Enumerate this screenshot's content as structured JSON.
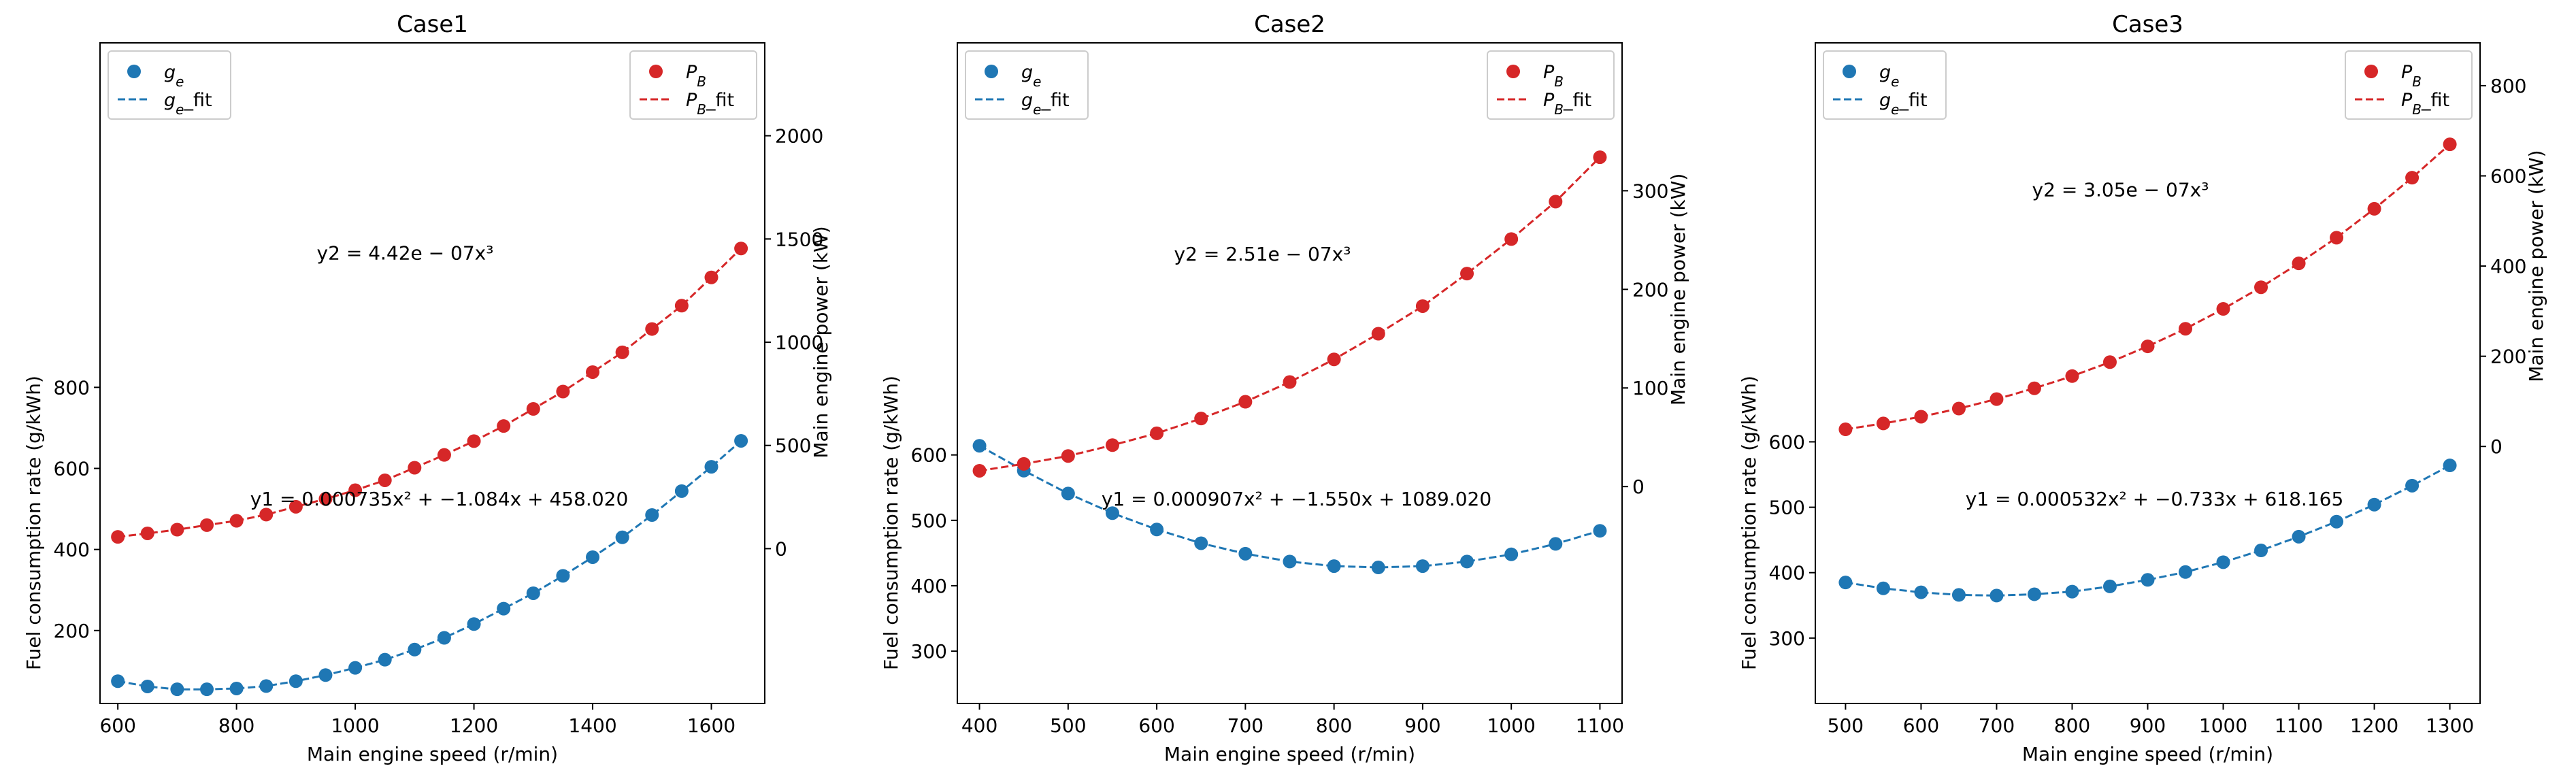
{
  "chart_data": [
    {
      "type": "scatter",
      "title": "Case1",
      "xlabel": "Main engine speed (r/min)",
      "ylabel_left": "Fuel consumption rate (g/kWh)",
      "ylabel_right": "Main engine power (kW)",
      "xlim": [
        570,
        1690
      ],
      "ylim_left": [
        20,
        1650
      ],
      "ylim_right": [
        -750,
        2450
      ],
      "xticks": [
        600,
        800,
        1000,
        1200,
        1400,
        1600
      ],
      "yticks_left": [
        200,
        400,
        600,
        800
      ],
      "yticks_right": [
        0,
        500,
        1000,
        1500,
        2000
      ],
      "x": [
        600,
        650,
        700,
        750,
        800,
        850,
        900,
        950,
        1000,
        1050,
        1100,
        1150,
        1200,
        1250,
        1300,
        1350,
        1400,
        1450,
        1500,
        1550,
        1600,
        1650
      ],
      "ge": [
        75,
        62,
        55,
        55,
        57,
        63,
        75,
        90,
        108,
        128,
        153,
        182,
        216,
        254,
        292,
        335,
        381,
        430,
        485,
        544,
        604,
        668
      ],
      "pb": [
        57,
        74,
        92,
        114,
        135,
        165,
        203,
        241,
        283,
        331,
        392,
        454,
        521,
        594,
        677,
        761,
        855,
        951,
        1064,
        1177,
        1314,
        1454
      ],
      "fit_ge": {
        "a": 0.000735,
        "b": -1.084,
        "c": 458.02
      },
      "fit_pb": {
        "k": 4.42e-07,
        "p": 3
      },
      "legend_left": [
        "g_e",
        "g_e_fit"
      ],
      "legend_right": [
        "P_B",
        "P_B_fit"
      ],
      "legend_left_loc": "upper left",
      "legend_right_loc": "upper right",
      "eq_ge": "y1 = 0.000735x² + −1.084x + 458.020",
      "eq_pb": "y2 = 4.42e − 07x³"
    },
    {
      "type": "scatter",
      "title": "Case2",
      "xlabel": "Main engine speed (r/min)",
      "ylabel_left": "Fuel consumption rate (g/kWh)",
      "ylabel_right": "Main engine power (kW)",
      "xlim": [
        375,
        1125
      ],
      "ylim_left": [
        220,
        1230
      ],
      "ylim_right": [
        -220,
        450
      ],
      "xticks": [
        400,
        500,
        600,
        700,
        800,
        900,
        1000,
        1100
      ],
      "yticks_left": [
        300,
        400,
        500,
        600
      ],
      "yticks_right": [
        0,
        100,
        200,
        300
      ],
      "x": [
        400,
        450,
        500,
        550,
        600,
        650,
        700,
        750,
        800,
        850,
        900,
        950,
        1000,
        1050,
        1100
      ],
      "ge": [
        614,
        576,
        541,
        511,
        486,
        465,
        449,
        437,
        430,
        428,
        430,
        437,
        448,
        464,
        484
      ],
      "pb": [
        16,
        23,
        31,
        42,
        54,
        69,
        86,
        106,
        129,
        155,
        183,
        216,
        251,
        289,
        334
      ],
      "fit_ge": {
        "a": 0.000907,
        "b": -1.55,
        "c": 1089.02
      },
      "fit_pb": {
        "k": 2.51e-07,
        "p": 3
      },
      "legend_left": [
        "g_e",
        "g_e_fit"
      ],
      "legend_right": [
        "P_B",
        "P_B_fit"
      ],
      "legend_left_loc": "upper left",
      "legend_right_loc": "upper right",
      "eq_ge": "y1 = 0.000907x² + −1.550x + 1089.020",
      "eq_pb": "y2 = 2.51e − 07x³"
    },
    {
      "type": "scatter",
      "title": "Case3",
      "xlabel": "Main engine speed (r/min)",
      "ylabel_left": "Fuel consumption rate (g/kWh)",
      "ylabel_right": "Main engine power (kW)",
      "xlim": [
        460,
        1340
      ],
      "ylim_left": [
        200,
        1210
      ],
      "ylim_right": [
        -570,
        895
      ],
      "xticks": [
        500,
        600,
        700,
        800,
        900,
        1000,
        1100,
        1200,
        1300
      ],
      "yticks_left": [
        300,
        400,
        500,
        600
      ],
      "yticks_right": [
        0,
        200,
        400,
        600,
        800
      ],
      "x": [
        500,
        550,
        600,
        650,
        700,
        750,
        800,
        850,
        900,
        950,
        1000,
        1050,
        1100,
        1150,
        1200,
        1250,
        1300
      ],
      "ge": [
        385,
        376,
        370,
        366,
        365,
        367,
        371,
        379,
        389,
        401,
        416,
        434,
        455,
        478,
        504,
        533,
        564
      ],
      "pb": [
        38,
        51,
        66,
        84,
        105,
        129,
        156,
        187,
        222,
        261,
        305,
        353,
        406,
        463,
        527,
        596,
        670
      ],
      "fit_ge": {
        "a": 0.000532,
        "b": -0.733,
        "c": 618.165
      },
      "fit_pb": {
        "k": 3.05e-07,
        "p": 3
      },
      "legend_left": [
        "g_e",
        "g_e_fit"
      ],
      "legend_right": [
        "P_B",
        "P_B_fit"
      ],
      "legend_left_loc": "upper left",
      "legend_right_loc": "upper right",
      "eq_ge": "y1 = 0.000532x² + −0.733x + 618.165",
      "eq_pb": "y2 = 3.05e − 07x³"
    }
  ],
  "colors": {
    "ge": "#1f77b4",
    "pb": "#d62728",
    "frame": "#000000",
    "legend_border": "#cccccc"
  }
}
